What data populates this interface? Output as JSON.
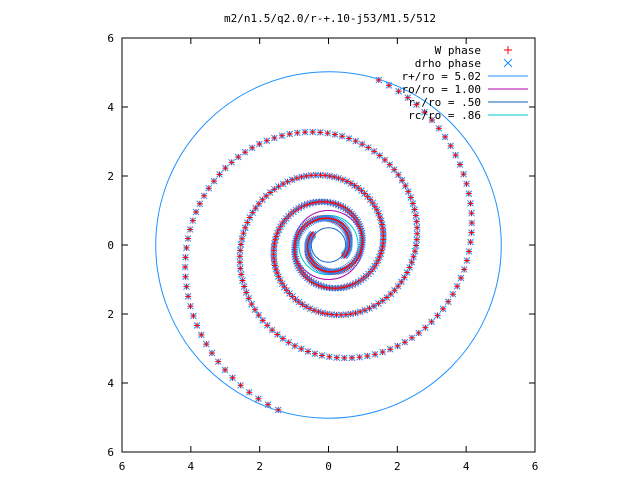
{
  "chart_data": {
    "type": "scatter",
    "title": "m2/n1.5/q2.0/r-+.10-j53/M1.5/512",
    "xlim": [
      -6,
      6
    ],
    "ylim": [
      -6,
      6
    ],
    "xticks": [
      -6,
      -4,
      -2,
      0,
      2,
      4,
      6
    ],
    "yticks": [
      -6,
      -4,
      -2,
      0,
      2,
      4,
      6
    ],
    "xtick_labels": [
      "6",
      "4",
      "2",
      "0",
      "2",
      "4",
      "6"
    ],
    "ytick_labels": [
      "6",
      "4",
      "2",
      "0",
      "2",
      "4",
      "6"
    ],
    "grid": false,
    "legend_position": "top-right",
    "series": [
      {
        "name": "W phase",
        "marker": "+",
        "color": "#ff0000"
      },
      {
        "name": "drho phase",
        "marker": "x",
        "color": "#1e90ff"
      }
    ],
    "circles": [
      {
        "name": "r+/ro = 5.02",
        "radius": 5.02,
        "color": "#1e90ff"
      },
      {
        "name": "ro/ro = 1.00",
        "radius": 1.0,
        "color": "#b000b0"
      },
      {
        "name": "r-/ro = .50",
        "radius": 0.5,
        "color": "#1060c0"
      },
      {
        "name": "rc/ro = .86",
        "radius": 0.86,
        "color": "#00c8c8"
      }
    ],
    "spiral": {
      "arms": 2,
      "r_inner": 0.55,
      "r_outer": 5.0,
      "arm_start_angles_deg": [
        -35,
        145
      ],
      "total_turns": 2.3
    }
  }
}
